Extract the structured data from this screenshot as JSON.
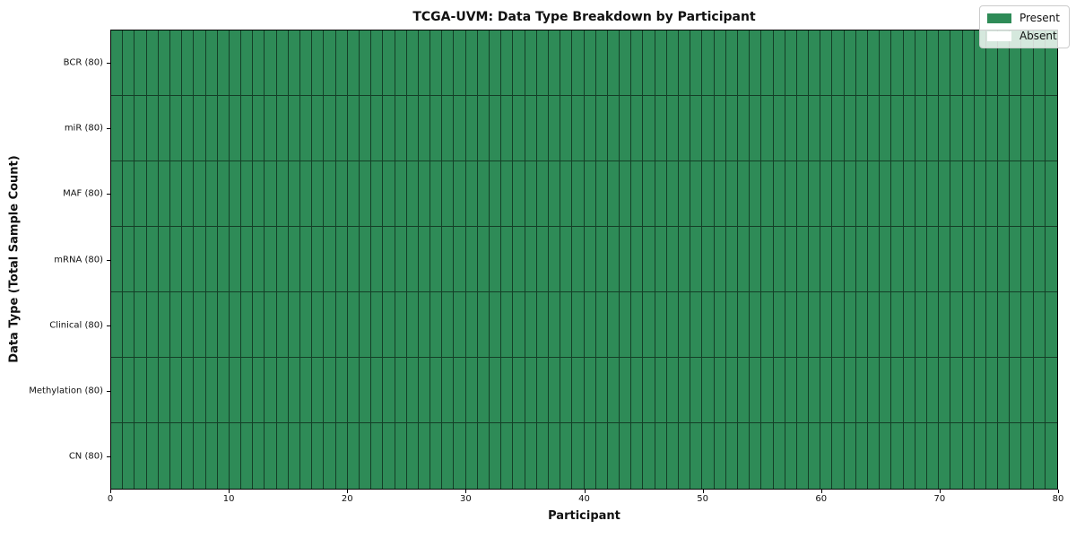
{
  "chart_data": {
    "type": "heatmap",
    "title": "TCGA-UVM: Data Type Breakdown by Participant",
    "xlabel": "Participant",
    "ylabel": "Data Type (Total Sample Count)",
    "xlim": [
      0,
      80
    ],
    "x_ticks": [
      0,
      10,
      20,
      30,
      40,
      50,
      60,
      70,
      80
    ],
    "n_participants": 80,
    "y_categories": [
      "BCR (80)",
      "miR (80)",
      "MAF (80)",
      "mRNA (80)",
      "Clinical (80)",
      "Methylation (80)",
      "CN (80)"
    ],
    "series": [
      {
        "name": "BCR (80)",
        "present_count": 80,
        "absent_count": 0
      },
      {
        "name": "miR (80)",
        "present_count": 80,
        "absent_count": 0
      },
      {
        "name": "MAF (80)",
        "present_count": 80,
        "absent_count": 0
      },
      {
        "name": "mRNA (80)",
        "present_count": 80,
        "absent_count": 0
      },
      {
        "name": "Clinical (80)",
        "present_count": 80,
        "absent_count": 0
      },
      {
        "name": "Methylation (80)",
        "present_count": 80,
        "absent_count": 0
      },
      {
        "name": "CN (80)",
        "present_count": 80,
        "absent_count": 0
      }
    ],
    "legend": {
      "position": "upper right",
      "entries": [
        {
          "label": "Present",
          "color": "#2e8b57"
        },
        {
          "label": "Absent",
          "color": "#ffffff"
        }
      ]
    },
    "colors": {
      "present": "#2e8b57",
      "absent": "#ffffff",
      "cell_border": "rgba(0,0,0,0.55)",
      "spine": "#000000",
      "text": "#111111"
    },
    "grid": true
  }
}
